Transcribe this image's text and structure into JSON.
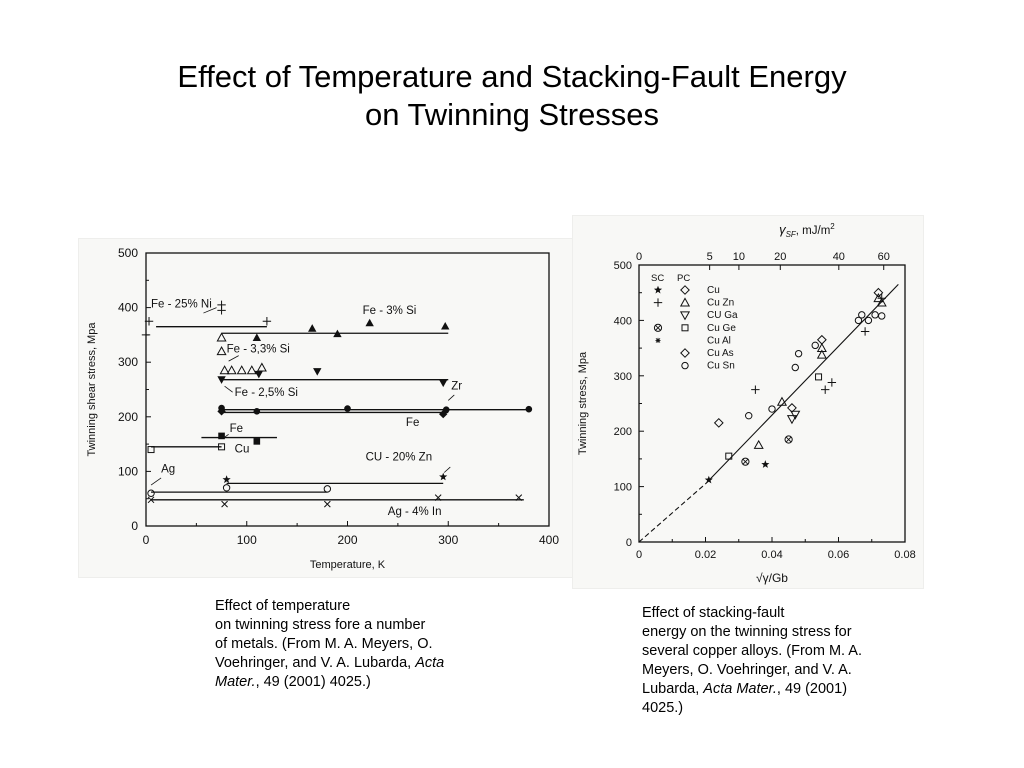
{
  "title": {
    "line1": "Effect of Temperature and Stacking-Fault Energy",
    "line2": "on Twinning Stresses"
  },
  "captions": {
    "left": {
      "line1": "Effect of temperature",
      "line2": "on twinning stress fore a number",
      "line3": "of metals. (From M. A. Meyers, O.",
      "line4": "Voehringer, and V. A. Lubarda, ",
      "line4_italic": "Acta",
      "line5_italic": "Mater.",
      "line5": ", 49 (2001) 4025.)"
    },
    "right": {
      "line1": "Effect of stacking-fault",
      "line2": "energy on the twinning stress for",
      "line3": "several copper alloys. (From M. A.",
      "line4": "Meyers, O. Voehringer, and V. A.",
      "line5": "Lubarda, ",
      "line5_italic": "Acta Mater.",
      "line5_tail": ", 49 (2001)",
      "line6": "4025.)"
    }
  },
  "chart_data": [
    {
      "type": "line",
      "xlabel": "Temperature, K",
      "ylabel": "Twinning shear stress, Mpa",
      "xlim": [
        0,
        400
      ],
      "ylim": [
        0,
        500
      ],
      "xticks": [
        "0",
        "100",
        "200",
        "300",
        "400"
      ],
      "yticks": [
        "0",
        "100",
        "200",
        "300",
        "400",
        "500"
      ],
      "series": [
        {
          "name": "Fe - 25% Ni",
          "marker": "+",
          "line": [
            [
              10,
              365
            ],
            [
              120,
              365
            ]
          ],
          "points": [
            [
              3,
              375
            ],
            [
              0,
              350
            ],
            [
              75,
              405
            ],
            [
              75,
              395
            ],
            [
              120,
              375
            ]
          ]
        },
        {
          "name": "Fe - 3% Si",
          "marker": "filled-triangle-up",
          "line": [
            [
              75,
              353
            ],
            [
              300,
              353
            ]
          ],
          "points": [
            [
              110,
              345
            ],
            [
              165,
              362
            ],
            [
              190,
              352
            ],
            [
              222,
              372
            ],
            [
              297,
              366
            ]
          ]
        },
        {
          "name": "Fe - 3,3% Si",
          "marker": "open-triangle-up",
          "line": [],
          "points": [
            [
              75,
              345
            ],
            [
              75,
              320
            ],
            [
              78,
              285
            ],
            [
              85,
              285
            ],
            [
              95,
              285
            ],
            [
              105,
              285
            ],
            [
              115,
              290
            ]
          ]
        },
        {
          "name": "Fe - 2,5% Si",
          "marker": "filled-triangle-down",
          "line": [
            [
              75,
              268
            ],
            [
              300,
              268
            ]
          ],
          "points": [
            [
              75,
              268
            ],
            [
              112,
              278
            ],
            [
              170,
              283
            ],
            [
              295,
              262
            ]
          ]
        },
        {
          "name": "Zr",
          "marker": "filled-circle",
          "line": [
            [
              75,
              213
            ],
            [
              380,
              213
            ]
          ],
          "points": [
            [
              75,
              216
            ],
            [
              110,
              210
            ],
            [
              200,
              215
            ],
            [
              298,
              213
            ],
            [
              380,
              214
            ]
          ]
        },
        {
          "name": "Fe",
          "marker": "filled-diamond",
          "line": [
            [
              75,
              208
            ],
            [
              300,
              208
            ]
          ],
          "points": [
            [
              75,
              210
            ],
            [
              295,
              205
            ]
          ]
        },
        {
          "name": "Fe",
          "marker": "filled-square",
          "line": [
            [
              55,
              162
            ],
            [
              130,
              162
            ]
          ],
          "points": [
            [
              75,
              165
            ],
            [
              110,
              155
            ]
          ]
        },
        {
          "name": "Cu",
          "marker": "open-square",
          "line": [
            [
              5,
              145
            ],
            [
              75,
              145
            ]
          ],
          "points": [
            [
              5,
              140
            ],
            [
              75,
              145
            ]
          ]
        },
        {
          "name": "CU - 20% Zn",
          "marker": "star",
          "line": [
            [
              80,
              78
            ],
            [
              295,
              78
            ]
          ],
          "points": [
            [
              80,
              85
            ],
            [
              295,
              90
            ]
          ]
        },
        {
          "name": "Ag",
          "marker": "open-circle",
          "line": [
            [
              5,
              62
            ],
            [
              180,
              62
            ]
          ],
          "points": [
            [
              5,
              60
            ],
            [
              80,
              70
            ],
            [
              180,
              68
            ]
          ]
        },
        {
          "name": "Ag - 4% In",
          "marker": "x",
          "line": [
            [
              5,
              48
            ],
            [
              375,
              48
            ]
          ],
          "points": [
            [
              5,
              48
            ],
            [
              78,
              40
            ],
            [
              180,
              40
            ],
            [
              290,
              52
            ],
            [
              370,
              52
            ]
          ]
        }
      ]
    },
    {
      "type": "scatter",
      "xlabel": "√γ/Gb",
      "ylabel": "Twinning stress, Mpa",
      "top_axis_label": "γSF, mJ/m2",
      "top_ticks": [
        "0",
        "5",
        "10",
        "20",
        "40",
        "60"
      ],
      "top_tick_values": [
        0,
        5,
        10,
        20,
        40,
        60
      ],
      "xlim": [
        0,
        0.08
      ],
      "ylim": [
        0,
        500
      ],
      "xticks": [
        "0",
        "0.02",
        "0.04",
        "0.06",
        "0.08"
      ],
      "yticks": [
        "0",
        "100",
        "200",
        "300",
        "400",
        "500"
      ],
      "legend_headers": [
        "SC",
        "PC"
      ],
      "legend": [
        {
          "name": "Cu",
          "sc": "filled-star",
          "pc": "open-diamond"
        },
        {
          "name": "Cu Zn",
          "sc": "plus",
          "pc": "open-triangle-up"
        },
        {
          "name": "CU Ga",
          "sc": "",
          "pc": "open-triangle-down"
        },
        {
          "name": "Cu Ge",
          "sc": "circle-x",
          "pc": "open-square"
        },
        {
          "name": "Cu Al",
          "sc": "small-star",
          "pc": ""
        },
        {
          "name": "Cu As",
          "sc": "",
          "pc": "open-diamond"
        },
        {
          "name": "Cu Sn",
          "sc": "",
          "pc": "open-circle"
        }
      ],
      "fit_line": {
        "solid": [
          [
            0.02,
            105
          ],
          [
            0.078,
            465
          ]
        ],
        "dashed": [
          [
            0,
            0
          ],
          [
            0.02,
            105
          ]
        ]
      },
      "series": [
        {
          "name": "Cu SC",
          "marker": "filled-star",
          "points": [
            [
              0.021,
              112
            ],
            [
              0.038,
              140
            ]
          ]
        },
        {
          "name": "Cu PC",
          "marker": "open-diamond",
          "points": [
            [
              0.072,
              450
            ],
            [
              0.055,
              365
            ]
          ]
        },
        {
          "name": "Cu Zn SC",
          "marker": "plus",
          "points": [
            [
              0.035,
              275
            ],
            [
              0.056,
              275
            ],
            [
              0.058,
              288
            ],
            [
              0.068,
              380
            ],
            [
              0.073,
              440
            ]
          ]
        },
        {
          "name": "Cu Zn PC",
          "marker": "open-triangle-up",
          "points": [
            [
              0.036,
              175
            ],
            [
              0.043,
              253
            ],
            [
              0.055,
              338
            ],
            [
              0.055,
              350
            ],
            [
              0.072,
              440
            ],
            [
              0.073,
              432
            ]
          ]
        },
        {
          "name": "CU Ga PC",
          "marker": "open-triangle-down",
          "points": [
            [
              0.046,
              222
            ],
            [
              0.047,
              230
            ]
          ]
        },
        {
          "name": "Cu Ge SC",
          "marker": "circle-x",
          "points": [
            [
              0.032,
              145
            ],
            [
              0.045,
              185
            ]
          ]
        },
        {
          "name": "Cu Ge PC",
          "marker": "open-square",
          "points": [
            [
              0.027,
              155
            ],
            [
              0.054,
              298
            ]
          ]
        },
        {
          "name": "Cu As PC",
          "marker": "open-diamond",
          "points": [
            [
              0.024,
              215
            ],
            [
              0.046,
              242
            ]
          ]
        },
        {
          "name": "Cu Sn PC",
          "marker": "open-circle",
          "points": [
            [
              0.033,
              228
            ],
            [
              0.04,
              240
            ],
            [
              0.047,
              315
            ],
            [
              0.048,
              340
            ],
            [
              0.053,
              355
            ],
            [
              0.066,
              400
            ],
            [
              0.067,
              410
            ],
            [
              0.069,
              400
            ],
            [
              0.071,
              410
            ],
            [
              0.073,
              408
            ]
          ]
        }
      ]
    }
  ]
}
